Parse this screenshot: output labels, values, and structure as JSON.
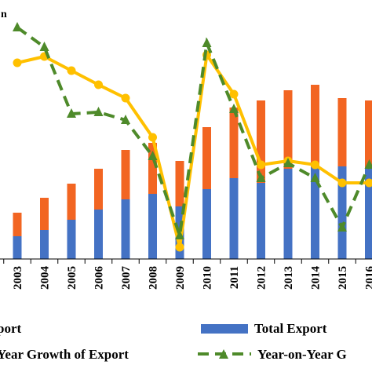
{
  "chart_data": {
    "type": "bar",
    "categories": [
      "2003",
      "2004",
      "2005",
      "2006",
      "2007",
      "2008",
      "2009",
      "2010",
      "2011",
      "2012",
      "2013",
      "2014",
      "2015",
      "2016"
    ],
    "series": [
      {
        "name": "Total Export",
        "kind": "bar",
        "color": "#4472C4",
        "values": [
          29,
          37,
          50,
          63,
          76,
          83,
          67,
          89,
          103,
          97,
          115,
          117,
          118,
          115
        ]
      },
      {
        "name": "...port",
        "kind": "bar",
        "color": "#F26522",
        "values": [
          59,
          78,
          96,
          115,
          139,
          148,
          125,
          168,
          193,
          202,
          215,
          222,
          205,
          202
        ]
      },
      {
        "name": "...Year Growth  of Export",
        "kind": "line",
        "color": "#FFC000",
        "values": [
          0.25,
          0.258,
          0.24,
          0.222,
          0.205,
          0.155,
          0.015,
          0.26,
          0.21,
          0.12,
          0.125,
          0.12,
          0.097,
          0.097
        ]
      },
      {
        "name": "Year-on-Year G...",
        "kind": "line-dashed",
        "color": "#4E8A2A",
        "values": [
          0.295,
          0.27,
          0.185,
          0.187,
          0.177,
          0.131,
          0.03,
          0.275,
          0.191,
          0.103,
          0.122,
          0.103,
          0.04,
          0.12
        ]
      }
    ],
    "corner_text": "n",
    "y_left_range": [
      0,
      330
    ],
    "y_right_range": [
      0,
      0.33
    ],
    "legend_position": "bottom",
    "grid": false
  }
}
